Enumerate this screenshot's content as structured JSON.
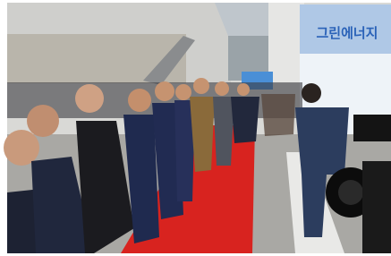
{
  "banner": {
    "text": "그린에너지"
  }
}
